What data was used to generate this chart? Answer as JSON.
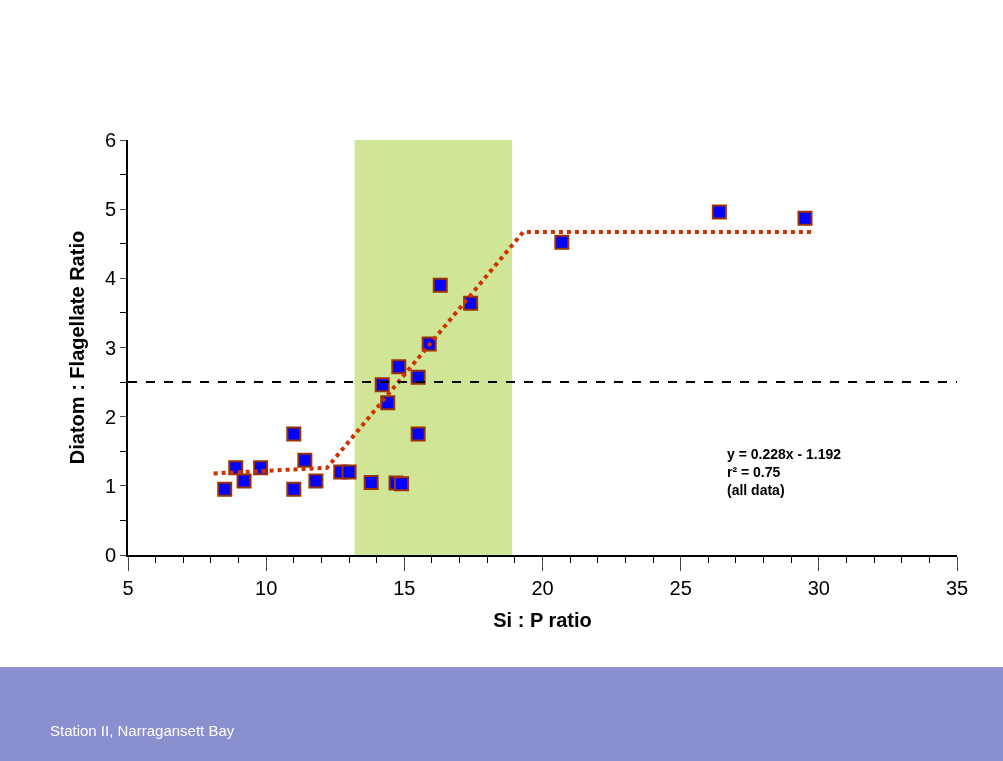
{
  "chart_data": {
    "type": "scatter",
    "xlabel": "Si : P ratio",
    "ylabel": "Diatom : Flagellate Ratio",
    "annotations": [
      "y = 0.228x - 1.192\nr² = 0.75\n(all data)",
      "Station II, Narragansett Bay"
    ],
    "series": [
      {
        "color": "#0000ff",
        "marker": "square",
        "x": [
          8.5,
          8.9,
          9.2,
          9.8,
          11.0,
          11.0,
          11.4,
          11.8,
          12.7,
          13.0,
          13.8,
          14.7,
          14.9,
          14.2,
          14.4,
          14.8,
          15.5,
          15.5,
          15.9,
          16.3,
          17.4,
          20.7,
          26.4,
          29.5
        ],
        "values": [
          0.95,
          1.26,
          1.07,
          1.26,
          1.75,
          0.95,
          1.37,
          1.07,
          1.2,
          1.2,
          1.05,
          1.04,
          1.03,
          2.46,
          2.2,
          2.72,
          2.57,
          1.75,
          3.05,
          3.9,
          3.64,
          4.52,
          4.96,
          4.87
        ]
      },
      {
        "type": "line",
        "color": "#cc3300",
        "line_style": "dotted",
        "marker": "none",
        "x": [
          8.1,
          12.2,
          19.3,
          29.8
        ],
        "values": [
          1.18,
          1.26,
          4.67,
          4.67
        ]
      }
    ],
    "ref_lines": [
      {
        "axis": "y",
        "value": 2.5,
        "color": "#000000",
        "line_style": "dashed"
      }
    ],
    "bands": [
      {
        "axis": "x",
        "from": 13.2,
        "to": 18.9,
        "color": "#c6de7c"
      }
    ],
    "xlim": [
      5,
      35
    ],
    "xticks": [
      5,
      10,
      15,
      20,
      25,
      30,
      35
    ],
    "ylim": [
      0,
      6
    ],
    "yticks": [
      0,
      1,
      2,
      3,
      4,
      5,
      6
    ],
    "grid": false
  }
}
